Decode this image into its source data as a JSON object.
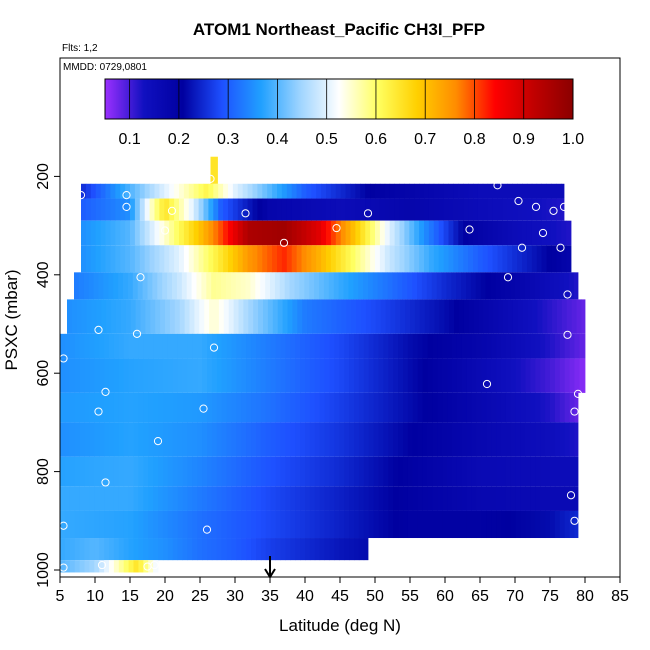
{
  "chart_data": {
    "type": "heatmap",
    "title": "ATOM1 Northeast_Pacific CH3I_PFP",
    "flights_label": "Flts: 1,2",
    "date_label": "MMDD: 0729,0801",
    "xlabel": "Latitude (deg N)",
    "ylabel": "PSXC (mbar)",
    "xlim": [
      5,
      85
    ],
    "ylim": [
      1000,
      0
    ],
    "x_ticks": [
      "5",
      "10",
      "15",
      "20",
      "25",
      "30",
      "35",
      "40",
      "45",
      "50",
      "55",
      "60",
      "65",
      "70",
      "75",
      "80",
      "85"
    ],
    "y_ticks": [
      "200",
      "400",
      "600",
      "800",
      "1000"
    ],
    "colorbar": {
      "range": [
        0.05,
        1.0
      ],
      "tick_labels": [
        "0.1",
        "0.2",
        "0.3",
        "0.4",
        "0.5",
        "0.6",
        "0.7",
        "0.8",
        "0.9",
        "1.0"
      ],
      "colors": [
        "#9b30ff",
        "#1010c0",
        "#0000a0",
        "#1e50ff",
        "#20a0ff",
        "#9ed4ff",
        "#ffffff",
        "#ffff60",
        "#ffd000",
        "#ff8c00",
        "#ff0000",
        "#c00000",
        "#8b0000"
      ]
    },
    "grid": false,
    "arrow_at_latitude": 35,
    "layers": [
      {
        "p_top": 215,
        "p_bot": 245,
        "lat_start": 8,
        "lat_end": 77,
        "lat_knots": [
          8,
          20,
          26,
          30,
          40,
          50,
          65,
          77
        ],
        "val_knots": [
          0.25,
          0.5,
          0.62,
          0.5,
          0.3,
          0.2,
          0.15,
          0.15
        ]
      },
      {
        "p_top": 245,
        "p_bot": 290,
        "lat_start": 8,
        "lat_end": 77,
        "lat_knots": [
          8,
          15,
          18,
          20,
          24,
          28,
          35,
          45,
          55,
          65,
          77
        ],
        "val_knots": [
          0.3,
          0.35,
          0.55,
          0.65,
          0.5,
          0.3,
          0.18,
          0.15,
          0.18,
          0.15,
          0.12
        ]
      },
      {
        "p_top": 290,
        "p_bot": 340,
        "lat_start": 8,
        "lat_end": 78,
        "lat_knots": [
          8,
          15,
          20,
          25,
          28,
          32,
          37,
          42,
          47,
          52,
          57,
          63,
          70,
          78
        ],
        "val_knots": [
          0.35,
          0.4,
          0.55,
          0.7,
          0.8,
          0.95,
          0.97,
          0.88,
          0.7,
          0.5,
          0.35,
          0.2,
          0.15,
          0.12
        ]
      },
      {
        "p_top": 340,
        "p_bot": 395,
        "lat_start": 8,
        "lat_end": 78,
        "lat_knots": [
          8,
          15,
          22,
          27,
          32,
          37,
          42,
          47,
          52,
          58,
          65,
          78
        ],
        "val_knots": [
          0.35,
          0.4,
          0.5,
          0.62,
          0.75,
          0.82,
          0.72,
          0.6,
          0.48,
          0.38,
          0.3,
          0.18
        ]
      },
      {
        "p_top": 395,
        "p_bot": 450,
        "lat_start": 7,
        "lat_end": 79,
        "lat_knots": [
          7,
          15,
          22,
          27,
          32,
          38,
          45,
          52,
          60,
          70,
          79
        ],
        "val_knots": [
          0.33,
          0.38,
          0.48,
          0.58,
          0.55,
          0.45,
          0.38,
          0.32,
          0.25,
          0.18,
          0.12
        ]
      },
      {
        "p_top": 450,
        "p_bot": 520,
        "lat_start": 6,
        "lat_end": 80,
        "lat_knots": [
          6,
          15,
          22,
          27,
          32,
          40,
          50,
          60,
          70,
          80
        ],
        "val_knots": [
          0.35,
          0.38,
          0.45,
          0.55,
          0.45,
          0.33,
          0.28,
          0.22,
          0.15,
          0.08
        ]
      },
      {
        "p_top": 520,
        "p_bot": 570,
        "lat_start": 5,
        "lat_end": 80,
        "lat_knots": [
          5,
          15,
          25,
          35,
          45,
          55,
          65,
          75,
          80
        ],
        "val_knots": [
          0.35,
          0.38,
          0.38,
          0.33,
          0.28,
          0.22,
          0.18,
          0.12,
          0.08
        ]
      },
      {
        "p_top": 570,
        "p_bot": 640,
        "lat_start": 5,
        "lat_end": 80,
        "lat_knots": [
          5,
          15,
          25,
          35,
          45,
          55,
          65,
          75,
          80
        ],
        "val_knots": [
          0.35,
          0.37,
          0.38,
          0.33,
          0.28,
          0.22,
          0.16,
          0.1,
          0.06
        ]
      },
      {
        "p_top": 640,
        "p_bot": 700,
        "lat_start": 5,
        "lat_end": 79,
        "lat_knots": [
          5,
          15,
          25,
          35,
          45,
          55,
          65,
          75,
          79
        ],
        "val_knots": [
          0.36,
          0.37,
          0.36,
          0.32,
          0.27,
          0.22,
          0.17,
          0.12,
          0.08
        ]
      },
      {
        "p_top": 700,
        "p_bot": 770,
        "lat_start": 5,
        "lat_end": 79,
        "lat_knots": [
          5,
          15,
          25,
          35,
          45,
          55,
          65,
          75,
          79
        ],
        "val_knots": [
          0.35,
          0.37,
          0.35,
          0.3,
          0.26,
          0.21,
          0.17,
          0.14,
          0.12
        ]
      },
      {
        "p_top": 770,
        "p_bot": 830,
        "lat_start": 5,
        "lat_end": 79,
        "lat_knots": [
          5,
          15,
          25,
          35,
          45,
          55,
          65,
          75,
          79
        ],
        "val_knots": [
          0.37,
          0.38,
          0.34,
          0.29,
          0.25,
          0.2,
          0.16,
          0.15,
          0.15
        ]
      },
      {
        "p_top": 830,
        "p_bot": 880,
        "lat_start": 5,
        "lat_end": 79,
        "lat_knots": [
          5,
          15,
          25,
          35,
          45,
          55,
          65,
          75,
          79
        ],
        "val_knots": [
          0.38,
          0.38,
          0.33,
          0.28,
          0.24,
          0.2,
          0.17,
          0.16,
          0.16
        ]
      },
      {
        "p_top": 880,
        "p_bot": 935,
        "lat_start": 5,
        "lat_end": 79,
        "lat_knots": [
          5,
          15,
          25,
          35,
          45,
          55,
          65,
          75,
          79
        ],
        "val_knots": [
          0.38,
          0.37,
          0.32,
          0.28,
          0.24,
          0.2,
          0.2,
          0.22,
          0.25
        ]
      },
      {
        "p_top": 935,
        "p_bot": 980,
        "lat_start": 5,
        "lat_end": 49,
        "lat_knots": [
          5,
          10,
          15,
          20,
          25,
          30,
          35,
          40,
          45,
          49
        ],
        "val_knots": [
          0.38,
          0.4,
          0.37,
          0.35,
          0.32,
          0.3,
          0.27,
          0.25,
          0.23,
          0.22
        ]
      },
      {
        "p_top": 980,
        "p_bot": 1005,
        "lat_start": 5,
        "lat_end": 19,
        "lat_knots": [
          5,
          10,
          13,
          16,
          18,
          19
        ],
        "val_knots": [
          0.4,
          0.45,
          0.55,
          0.65,
          0.55,
          0.5
        ]
      },
      {
        "p_top": 160,
        "p_bot": 215,
        "lat_start": 26.5,
        "lat_end": 27.5,
        "lat_knots": [
          26.5,
          27.5
        ],
        "val_knots": [
          0.65,
          0.65
        ]
      }
    ],
    "sample_points": [
      {
        "lat": 8,
        "p": 238
      },
      {
        "lat": 14.5,
        "p": 238
      },
      {
        "lat": 14.5,
        "p": 262
      },
      {
        "lat": 21,
        "p": 270
      },
      {
        "lat": 26.5,
        "p": 205
      },
      {
        "lat": 31.5,
        "p": 275
      },
      {
        "lat": 49,
        "p": 275
      },
      {
        "lat": 44.5,
        "p": 305
      },
      {
        "lat": 63.5,
        "p": 308
      },
      {
        "lat": 67.5,
        "p": 218
      },
      {
        "lat": 70.5,
        "p": 250
      },
      {
        "lat": 73,
        "p": 262
      },
      {
        "lat": 75.5,
        "p": 270
      },
      {
        "lat": 77,
        "p": 262
      },
      {
        "lat": 74,
        "p": 315
      },
      {
        "lat": 76.5,
        "p": 345
      },
      {
        "lat": 71,
        "p": 345
      },
      {
        "lat": 69,
        "p": 405
      },
      {
        "lat": 37,
        "p": 335
      },
      {
        "lat": 16.5,
        "p": 405
      },
      {
        "lat": 20,
        "p": 310
      },
      {
        "lat": 77.5,
        "p": 440
      },
      {
        "lat": 77.5,
        "p": 522
      },
      {
        "lat": 10.5,
        "p": 512
      },
      {
        "lat": 16,
        "p": 520
      },
      {
        "lat": 27,
        "p": 548
      },
      {
        "lat": 5.5,
        "p": 570
      },
      {
        "lat": 66,
        "p": 622
      },
      {
        "lat": 79,
        "p": 642
      },
      {
        "lat": 11.5,
        "p": 638
      },
      {
        "lat": 10.5,
        "p": 678
      },
      {
        "lat": 25.5,
        "p": 672
      },
      {
        "lat": 78.5,
        "p": 678
      },
      {
        "lat": 19,
        "p": 738
      },
      {
        "lat": 11.5,
        "p": 822
      },
      {
        "lat": 78,
        "p": 848
      },
      {
        "lat": 78.5,
        "p": 900
      },
      {
        "lat": 5.5,
        "p": 910
      },
      {
        "lat": 26,
        "p": 918
      },
      {
        "lat": 5.5,
        "p": 995
      },
      {
        "lat": 11,
        "p": 990
      },
      {
        "lat": 17.5,
        "p": 993
      },
      {
        "lat": 18.5,
        "p": 990
      }
    ]
  }
}
